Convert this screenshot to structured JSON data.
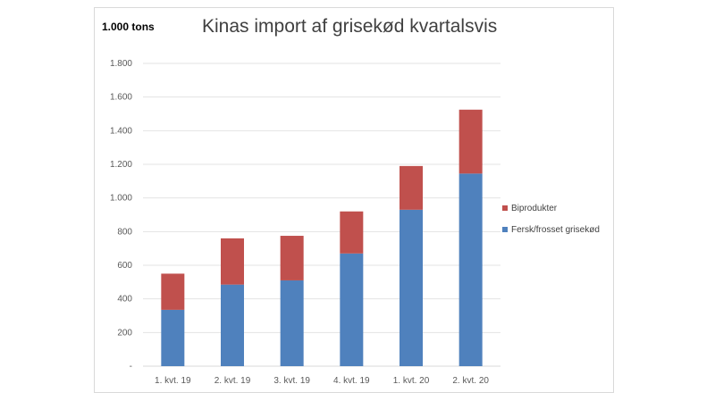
{
  "chart_data": {
    "type": "bar",
    "stacked": true,
    "title": "Kinas import af grisekød kvartalsvis",
    "unit_label": "1.000 tons",
    "categories": [
      "1. kvt. 19",
      "2. kvt. 19",
      "3. kvt. 19",
      "4. kvt. 19",
      "1. kvt. 20",
      "2. kvt. 20"
    ],
    "series": [
      {
        "name": "Fersk/frosset grisekød",
        "color": "#4f81bd",
        "values": [
          335,
          485,
          510,
          670,
          930,
          1145
        ]
      },
      {
        "name": "Biprodukter",
        "color": "#c0504d",
        "values": [
          215,
          275,
          265,
          250,
          260,
          380
        ]
      }
    ],
    "ylim": [
      0,
      1800
    ],
    "yticks": [
      {
        "value": 0,
        "label": "-"
      },
      {
        "value": 200,
        "label": "200"
      },
      {
        "value": 400,
        "label": "400"
      },
      {
        "value": 600,
        "label": "600"
      },
      {
        "value": 800,
        "label": "800"
      },
      {
        "value": 1000,
        "label": "1.000"
      },
      {
        "value": 1200,
        "label": "1.200"
      },
      {
        "value": 1400,
        "label": "1.400"
      },
      {
        "value": 1600,
        "label": "1.600"
      },
      {
        "value": 1800,
        "label": "1.800"
      }
    ],
    "grid": true,
    "legend_position": "right"
  }
}
